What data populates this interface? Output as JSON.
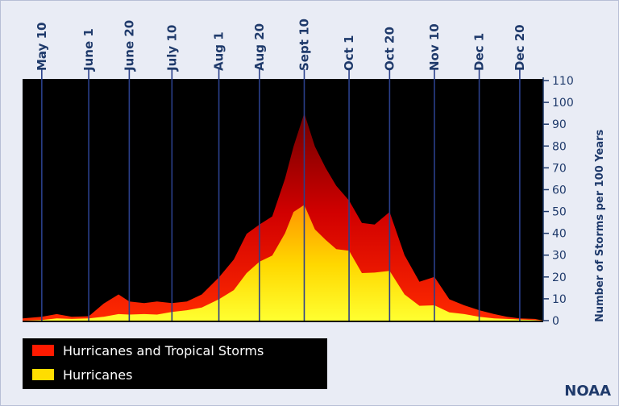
{
  "chart_data": {
    "type": "area",
    "title": "",
    "xlabel": "",
    "ylabel": "Number of Storms per 100 Years",
    "ylim": [
      0,
      110
    ],
    "yticks": [
      0,
      10,
      20,
      30,
      40,
      50,
      60,
      70,
      80,
      90,
      100,
      110
    ],
    "x_tick_labels": [
      "May 10",
      "June 1",
      "June 20",
      "July 10",
      "Aug 1",
      "Aug 20",
      "Sept 10",
      "Oct 1",
      "Oct 20",
      "Nov 10",
      "Dec 1",
      "Dec 20"
    ],
    "x_range": [
      "May 1",
      "Dec 31"
    ],
    "grid": "vertical lines at x tick labels",
    "legend_position": "bottom-left",
    "series": [
      {
        "name": "Hurricanes and Tropical Storms",
        "color": "#ff1a00",
        "x": [
          "May 1",
          "May 10",
          "May 17",
          "May 24",
          "June 1",
          "June 8",
          "June 15",
          "June 20",
          "June 27",
          "July 3",
          "July 10",
          "July 17",
          "July 24",
          "Aug 1",
          "Aug 8",
          "Aug 14",
          "Aug 20",
          "Aug 26",
          "Sept 1",
          "Sept 5",
          "Sept 10",
          "Sept 15",
          "Sept 20",
          "Sept 25",
          "Oct 1",
          "Oct 7",
          "Oct 13",
          "Oct 20",
          "Oct 27",
          "Nov 3",
          "Nov 10",
          "Nov 17",
          "Nov 24",
          "Dec 1",
          "Dec 8",
          "Dec 14",
          "Dec 20",
          "Dec 27",
          "Dec 31"
        ],
        "values": [
          1,
          2,
          3,
          2,
          2,
          8,
          12,
          9,
          8,
          9,
          8,
          9,
          12,
          20,
          28,
          40,
          44,
          48,
          65,
          80,
          95,
          80,
          70,
          62,
          55,
          45,
          44,
          50,
          30,
          18,
          20,
          10,
          7,
          5,
          3,
          2,
          1,
          1,
          0
        ]
      },
      {
        "name": "Hurricanes",
        "color": "#ffdd00",
        "x": [
          "May 1",
          "May 10",
          "May 17",
          "May 24",
          "June 1",
          "June 8",
          "June 15",
          "June 20",
          "June 27",
          "July 3",
          "July 10",
          "July 17",
          "July 24",
          "Aug 1",
          "Aug 8",
          "Aug 14",
          "Aug 20",
          "Aug 26",
          "Sept 1",
          "Sept 5",
          "Sept 10",
          "Sept 15",
          "Sept 20",
          "Sept 25",
          "Oct 1",
          "Oct 7",
          "Oct 13",
          "Oct 20",
          "Oct 27",
          "Nov 3",
          "Nov 10",
          "Nov 17",
          "Nov 24",
          "Dec 1",
          "Dec 8",
          "Dec 14",
          "Dec 20",
          "Dec 27",
          "Dec 31"
        ],
        "values": [
          0,
          0.5,
          1,
          1,
          1,
          2,
          3,
          3,
          3,
          3,
          4,
          5,
          6,
          10,
          14,
          22,
          27,
          30,
          40,
          50,
          53,
          42,
          37,
          33,
          32,
          22,
          22,
          23,
          12,
          7,
          7,
          4,
          3,
          2,
          1,
          1,
          0.5,
          0.5,
          0
        ]
      }
    ]
  },
  "credit": "NOAA"
}
